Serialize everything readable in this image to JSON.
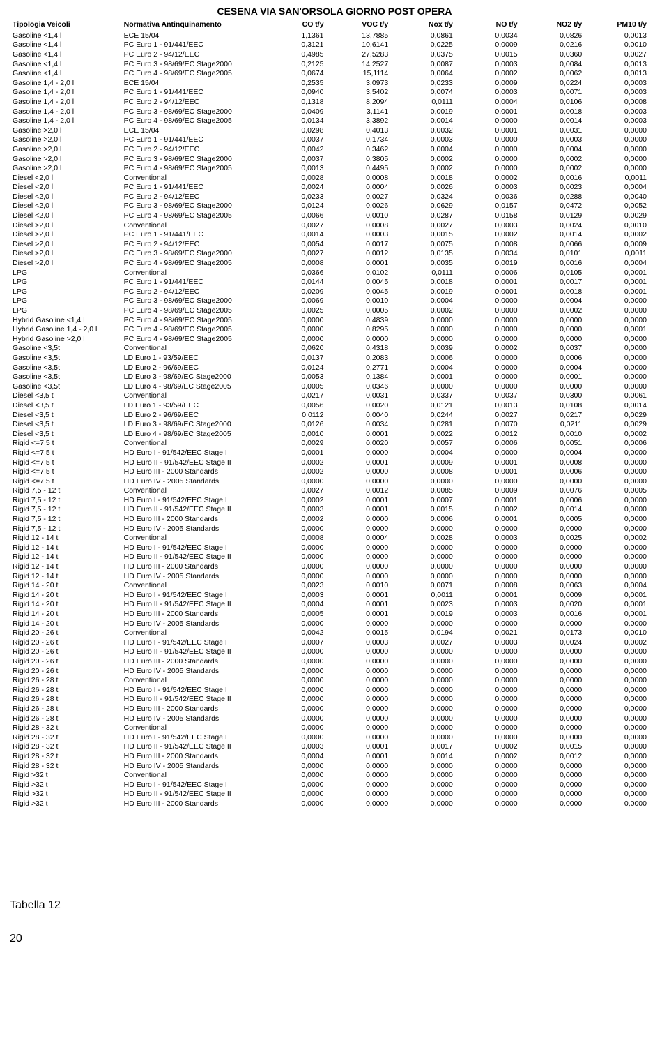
{
  "title": "CESENA VIA SAN'ORSOLA GIORNO POST OPERA",
  "headers": [
    "Tipologia Veicoli",
    "Normativa Antinquinamento",
    "CO t/y",
    "VOC t/y",
    "Nox t/y",
    "NO t/y",
    "NO2 t/y",
    "PM10 t/y"
  ],
  "caption": "Tabella 12",
  "pagenum": "20",
  "rows": [
    [
      "Gasoline <1,4 l",
      "ECE 15/04",
      "1,1361",
      "13,7885",
      "0,0861",
      "0,0034",
      "0,0826",
      "0,0013"
    ],
    [
      "Gasoline <1,4 l",
      "PC Euro 1 - 91/441/EEC",
      "0,3121",
      "10,6141",
      "0,0225",
      "0,0009",
      "0,0216",
      "0,0010"
    ],
    [
      "Gasoline <1,4 l",
      "PC Euro 2 - 94/12/EEC",
      "0,4985",
      "27,5283",
      "0,0375",
      "0,0015",
      "0,0360",
      "0,0027"
    ],
    [
      "Gasoline <1,4 l",
      "PC Euro 3 - 98/69/EC Stage2000",
      "0,2125",
      "14,2527",
      "0,0087",
      "0,0003",
      "0,0084",
      "0,0013"
    ],
    [
      "Gasoline <1,4 l",
      "PC Euro 4 - 98/69/EC Stage2005",
      "0,0674",
      "15,1114",
      "0,0064",
      "0,0002",
      "0,0062",
      "0,0013"
    ],
    [
      "Gasoline 1,4 - 2,0 l",
      "ECE 15/04",
      "0,2535",
      "3,0973",
      "0,0233",
      "0,0009",
      "0,0224",
      "0,0003"
    ],
    [
      "Gasoline 1,4 - 2,0 l",
      "PC Euro 1 - 91/441/EEC",
      "0,0940",
      "3,5402",
      "0,0074",
      "0,0003",
      "0,0071",
      "0,0003"
    ],
    [
      "Gasoline 1,4 - 2,0 l",
      "PC Euro 2 - 94/12/EEC",
      "0,1318",
      "8,2094",
      "0,0111",
      "0,0004",
      "0,0106",
      "0,0008"
    ],
    [
      "Gasoline 1,4 - 2,0 l",
      "PC Euro 3 - 98/69/EC Stage2000",
      "0,0409",
      "3,1141",
      "0,0019",
      "0,0001",
      "0,0018",
      "0,0003"
    ],
    [
      "Gasoline 1,4 - 2,0 l",
      "PC Euro 4 - 98/69/EC Stage2005",
      "0,0134",
      "3,3892",
      "0,0014",
      "0,0000",
      "0,0014",
      "0,0003"
    ],
    [
      "Gasoline >2,0 l",
      "ECE 15/04",
      "0,0298",
      "0,4013",
      "0,0032",
      "0,0001",
      "0,0031",
      "0,0000"
    ],
    [
      "Gasoline >2,0 l",
      "PC Euro 1 - 91/441/EEC",
      "0,0037",
      "0,1734",
      "0,0003",
      "0,0000",
      "0,0003",
      "0,0000"
    ],
    [
      "Gasoline >2,0 l",
      "PC Euro 2 - 94/12/EEC",
      "0,0042",
      "0,3462",
      "0,0004",
      "0,0000",
      "0,0004",
      "0,0000"
    ],
    [
      "Gasoline >2,0 l",
      "PC Euro 3 - 98/69/EC Stage2000",
      "0,0037",
      "0,3805",
      "0,0002",
      "0,0000",
      "0,0002",
      "0,0000"
    ],
    [
      "Gasoline >2,0 l",
      "PC Euro 4 - 98/69/EC Stage2005",
      "0,0013",
      "0,4495",
      "0,0002",
      "0,0000",
      "0,0002",
      "0,0000"
    ],
    [
      "Diesel <2,0 l",
      "Conventional",
      "0,0028",
      "0,0008",
      "0,0018",
      "0,0002",
      "0,0016",
      "0,0011"
    ],
    [
      "Diesel <2,0 l",
      "PC Euro 1 - 91/441/EEC",
      "0,0024",
      "0,0004",
      "0,0026",
      "0,0003",
      "0,0023",
      "0,0004"
    ],
    [
      "Diesel <2,0 l",
      "PC Euro 2 - 94/12/EEC",
      "0,0233",
      "0,0027",
      "0,0324",
      "0,0036",
      "0,0288",
      "0,0040"
    ],
    [
      "Diesel <2,0 l",
      "PC Euro 3 - 98/69/EC Stage2000",
      "0,0124",
      "0,0026",
      "0,0629",
      "0,0157",
      "0,0472",
      "0,0052"
    ],
    [
      "Diesel <2,0 l",
      "PC Euro 4 - 98/69/EC Stage2005",
      "0,0066",
      "0,0010",
      "0,0287",
      "0,0158",
      "0,0129",
      "0,0029"
    ],
    [
      "Diesel >2,0 l",
      "Conventional",
      "0,0027",
      "0,0008",
      "0,0027",
      "0,0003",
      "0,0024",
      "0,0010"
    ],
    [
      "Diesel >2,0 l",
      "PC Euro 1 - 91/441/EEC",
      "0,0014",
      "0,0003",
      "0,0015",
      "0,0002",
      "0,0014",
      "0,0002"
    ],
    [
      "Diesel >2,0 l",
      "PC Euro 2 - 94/12/EEC",
      "0,0054",
      "0,0017",
      "0,0075",
      "0,0008",
      "0,0066",
      "0,0009"
    ],
    [
      "Diesel >2,0 l",
      "PC Euro 3 - 98/69/EC Stage2000",
      "0,0027",
      "0,0012",
      "0,0135",
      "0,0034",
      "0,0101",
      "0,0011"
    ],
    [
      "Diesel >2,0 l",
      "PC Euro 4 - 98/69/EC Stage2005",
      "0,0008",
      "0,0001",
      "0,0035",
      "0,0019",
      "0,0016",
      "0,0004"
    ],
    [
      "LPG",
      "Conventional",
      "0,0366",
      "0,0102",
      "0,0111",
      "0,0006",
      "0,0105",
      "0,0001"
    ],
    [
      "LPG",
      "PC Euro 1 - 91/441/EEC",
      "0,0144",
      "0,0045",
      "0,0018",
      "0,0001",
      "0,0017",
      "0,0001"
    ],
    [
      "LPG",
      "PC Euro 2 - 94/12/EEC",
      "0,0209",
      "0,0045",
      "0,0019",
      "0,0001",
      "0,0018",
      "0,0001"
    ],
    [
      "LPG",
      "PC Euro 3 - 98/69/EC Stage2000",
      "0,0069",
      "0,0010",
      "0,0004",
      "0,0000",
      "0,0004",
      "0,0000"
    ],
    [
      "LPG",
      "PC Euro 4 - 98/69/EC Stage2005",
      "0,0025",
      "0,0005",
      "0,0002",
      "0,0000",
      "0,0002",
      "0,0000"
    ],
    [
      "Hybrid Gasoline <1,4 l",
      "PC Euro 4 - 98/69/EC Stage2005",
      "0,0000",
      "0,4839",
      "0,0000",
      "0,0000",
      "0,0000",
      "0,0000"
    ],
    [
      "Hybrid Gasoline 1,4 - 2,0 l",
      "PC Euro 4 - 98/69/EC Stage2005",
      "0,0000",
      "0,8295",
      "0,0000",
      "0,0000",
      "0,0000",
      "0,0001"
    ],
    [
      "Hybrid Gasoline >2,0 l",
      "PC Euro 4 - 98/69/EC Stage2005",
      "0,0000",
      "0,0000",
      "0,0000",
      "0,0000",
      "0,0000",
      "0,0000"
    ],
    [
      "Gasoline <3,5t",
      "Conventional",
      "0,0620",
      "0,4318",
      "0,0039",
      "0,0002",
      "0,0037",
      "0,0000"
    ],
    [
      "Gasoline <3,5t",
      "LD Euro 1 - 93/59/EEC",
      "0,0137",
      "0,2083",
      "0,0006",
      "0,0000",
      "0,0006",
      "0,0000"
    ],
    [
      "Gasoline <3,5t",
      "LD Euro 2 - 96/69/EEC",
      "0,0124",
      "0,2771",
      "0,0004",
      "0,0000",
      "0,0004",
      "0,0000"
    ],
    [
      "Gasoline <3,5t",
      "LD Euro 3 - 98/69/EC Stage2000",
      "0,0053",
      "0,1384",
      "0,0001",
      "0,0000",
      "0,0001",
      "0,0000"
    ],
    [
      "Gasoline <3,5t",
      "LD Euro 4 - 98/69/EC Stage2005",
      "0,0005",
      "0,0346",
      "0,0000",
      "0,0000",
      "0,0000",
      "0,0000"
    ],
    [
      "Diesel <3,5 t",
      "Conventional",
      "0,0217",
      "0,0031",
      "0,0337",
      "0,0037",
      "0,0300",
      "0,0061"
    ],
    [
      "Diesel <3,5 t",
      "LD Euro 1 - 93/59/EEC",
      "0,0056",
      "0,0020",
      "0,0121",
      "0,0013",
      "0,0108",
      "0,0014"
    ],
    [
      "Diesel <3,5 t",
      "LD Euro 2 - 96/69/EEC",
      "0,0112",
      "0,0040",
      "0,0244",
      "0,0027",
      "0,0217",
      "0,0029"
    ],
    [
      "Diesel <3,5 t",
      "LD Euro 3 - 98/69/EC Stage2000",
      "0,0126",
      "0,0034",
      "0,0281",
      "0,0070",
      "0,0211",
      "0,0029"
    ],
    [
      "Diesel <3,5 t",
      "LD Euro 4 - 98/69/EC Stage2005",
      "0,0010",
      "0,0001",
      "0,0022",
      "0,0012",
      "0,0010",
      "0,0002"
    ],
    [
      "Rigid <=7,5 t",
      "Conventional",
      "0,0029",
      "0,0020",
      "0,0057",
      "0,0006",
      "0,0051",
      "0,0006"
    ],
    [
      "Rigid <=7,5 t",
      "HD Euro I - 91/542/EEC Stage I",
      "0,0001",
      "0,0000",
      "0,0004",
      "0,0000",
      "0,0004",
      "0,0000"
    ],
    [
      "Rigid <=7,5 t",
      "HD Euro II - 91/542/EEC Stage II",
      "0,0002",
      "0,0001",
      "0,0009",
      "0,0001",
      "0,0008",
      "0,0000"
    ],
    [
      "Rigid <=7,5 t",
      "HD Euro III - 2000 Standards",
      "0,0002",
      "0,0000",
      "0,0008",
      "0,0001",
      "0,0006",
      "0,0000"
    ],
    [
      "Rigid <=7,5 t",
      "HD Euro IV - 2005 Standards",
      "0,0000",
      "0,0000",
      "0,0000",
      "0,0000",
      "0,0000",
      "0,0000"
    ],
    [
      "Rigid 7,5 - 12 t",
      "Conventional",
      "0,0027",
      "0,0012",
      "0,0085",
      "0,0009",
      "0,0076",
      "0,0005"
    ],
    [
      "Rigid 7,5 - 12 t",
      "HD Euro I - 91/542/EEC Stage I",
      "0,0002",
      "0,0001",
      "0,0007",
      "0,0001",
      "0,0006",
      "0,0000"
    ],
    [
      "Rigid 7,5 - 12 t",
      "HD Euro II - 91/542/EEC Stage II",
      "0,0003",
      "0,0001",
      "0,0015",
      "0,0002",
      "0,0014",
      "0,0000"
    ],
    [
      "Rigid 7,5 - 12 t",
      "HD Euro III - 2000 Standards",
      "0,0002",
      "0,0000",
      "0,0006",
      "0,0001",
      "0,0005",
      "0,0000"
    ],
    [
      "Rigid 7,5 - 12 t",
      "HD Euro IV - 2005 Standards",
      "0,0000",
      "0,0000",
      "0,0000",
      "0,0000",
      "0,0000",
      "0,0000"
    ],
    [
      "Rigid 12 - 14 t",
      "Conventional",
      "0,0008",
      "0,0004",
      "0,0028",
      "0,0003",
      "0,0025",
      "0,0002"
    ],
    [
      "Rigid 12 - 14 t",
      "HD Euro I - 91/542/EEC Stage I",
      "0,0000",
      "0,0000",
      "0,0000",
      "0,0000",
      "0,0000",
      "0,0000"
    ],
    [
      "Rigid 12 - 14 t",
      "HD Euro II - 91/542/EEC Stage II",
      "0,0000",
      "0,0000",
      "0,0000",
      "0,0000",
      "0,0000",
      "0,0000"
    ],
    [
      "Rigid 12 - 14 t",
      "HD Euro III - 2000 Standards",
      "0,0000",
      "0,0000",
      "0,0000",
      "0,0000",
      "0,0000",
      "0,0000"
    ],
    [
      "Rigid 12 - 14 t",
      "HD Euro IV - 2005 Standards",
      "0,0000",
      "0,0000",
      "0,0000",
      "0,0000",
      "0,0000",
      "0,0000"
    ],
    [
      "Rigid 14 - 20 t",
      "Conventional",
      "0,0023",
      "0,0010",
      "0,0071",
      "0,0008",
      "0,0063",
      "0,0004"
    ],
    [
      "Rigid 14 - 20 t",
      "HD Euro I - 91/542/EEC Stage I",
      "0,0003",
      "0,0001",
      "0,0011",
      "0,0001",
      "0,0009",
      "0,0001"
    ],
    [
      "Rigid 14 - 20 t",
      "HD Euro II - 91/542/EEC Stage II",
      "0,0004",
      "0,0001",
      "0,0023",
      "0,0003",
      "0,0020",
      "0,0001"
    ],
    [
      "Rigid 14 - 20 t",
      "HD Euro III - 2000 Standards",
      "0,0005",
      "0,0001",
      "0,0019",
      "0,0003",
      "0,0016",
      "0,0001"
    ],
    [
      "Rigid 14 - 20 t",
      "HD Euro IV - 2005 Standards",
      "0,0000",
      "0,0000",
      "0,0000",
      "0,0000",
      "0,0000",
      "0,0000"
    ],
    [
      "Rigid 20 - 26 t",
      "Conventional",
      "0,0042",
      "0,0015",
      "0,0194",
      "0,0021",
      "0,0173",
      "0,0010"
    ],
    [
      "Rigid 20 - 26 t",
      "HD Euro I - 91/542/EEC Stage I",
      "0,0007",
      "0,0003",
      "0,0027",
      "0,0003",
      "0,0024",
      "0,0002"
    ],
    [
      "Rigid 20 - 26 t",
      "HD Euro II - 91/542/EEC Stage II",
      "0,0000",
      "0,0000",
      "0,0000",
      "0,0000",
      "0,0000",
      "0,0000"
    ],
    [
      "Rigid 20 - 26 t",
      "HD Euro III - 2000 Standards",
      "0,0000",
      "0,0000",
      "0,0000",
      "0,0000",
      "0,0000",
      "0,0000"
    ],
    [
      "Rigid 20 - 26 t",
      "HD Euro IV - 2005 Standards",
      "0,0000",
      "0,0000",
      "0,0000",
      "0,0000",
      "0,0000",
      "0,0000"
    ],
    [
      "Rigid 26 - 28 t",
      "Conventional",
      "0,0000",
      "0,0000",
      "0,0000",
      "0,0000",
      "0,0000",
      "0,0000"
    ],
    [
      "Rigid 26 - 28 t",
      "HD Euro I - 91/542/EEC Stage I",
      "0,0000",
      "0,0000",
      "0,0000",
      "0,0000",
      "0,0000",
      "0,0000"
    ],
    [
      "Rigid 26 - 28 t",
      "HD Euro II - 91/542/EEC Stage II",
      "0,0000",
      "0,0000",
      "0,0000",
      "0,0000",
      "0,0000",
      "0,0000"
    ],
    [
      "Rigid 26 - 28 t",
      "HD Euro III - 2000 Standards",
      "0,0000",
      "0,0000",
      "0,0000",
      "0,0000",
      "0,0000",
      "0,0000"
    ],
    [
      "Rigid 26 - 28 t",
      "HD Euro IV - 2005 Standards",
      "0,0000",
      "0,0000",
      "0,0000",
      "0,0000",
      "0,0000",
      "0,0000"
    ],
    [
      "Rigid 28 - 32 t",
      "Conventional",
      "0,0000",
      "0,0000",
      "0,0000",
      "0,0000",
      "0,0000",
      "0,0000"
    ],
    [
      "Rigid 28 - 32 t",
      "HD Euro I - 91/542/EEC Stage I",
      "0,0000",
      "0,0000",
      "0,0000",
      "0,0000",
      "0,0000",
      "0,0000"
    ],
    [
      "Rigid 28 - 32 t",
      "HD Euro II - 91/542/EEC Stage II",
      "0,0003",
      "0,0001",
      "0,0017",
      "0,0002",
      "0,0015",
      "0,0000"
    ],
    [
      "Rigid 28 - 32 t",
      "HD Euro III - 2000 Standards",
      "0,0004",
      "0,0001",
      "0,0014",
      "0,0002",
      "0,0012",
      "0,0000"
    ],
    [
      "Rigid 28 - 32 t",
      "HD Euro IV - 2005 Standards",
      "0,0000",
      "0,0000",
      "0,0000",
      "0,0000",
      "0,0000",
      "0,0000"
    ],
    [
      "Rigid >32 t",
      "Conventional",
      "0,0000",
      "0,0000",
      "0,0000",
      "0,0000",
      "0,0000",
      "0,0000"
    ],
    [
      "Rigid >32 t",
      "HD Euro I - 91/542/EEC Stage I",
      "0,0000",
      "0,0000",
      "0,0000",
      "0,0000",
      "0,0000",
      "0,0000"
    ],
    [
      "Rigid >32 t",
      "HD Euro II - 91/542/EEC Stage II",
      "0,0000",
      "0,0000",
      "0,0000",
      "0,0000",
      "0,0000",
      "0,0000"
    ],
    [
      "Rigid >32 t",
      "HD Euro III - 2000 Standards",
      "0,0000",
      "0,0000",
      "0,0000",
      "0,0000",
      "0,0000",
      "0,0000"
    ]
  ]
}
